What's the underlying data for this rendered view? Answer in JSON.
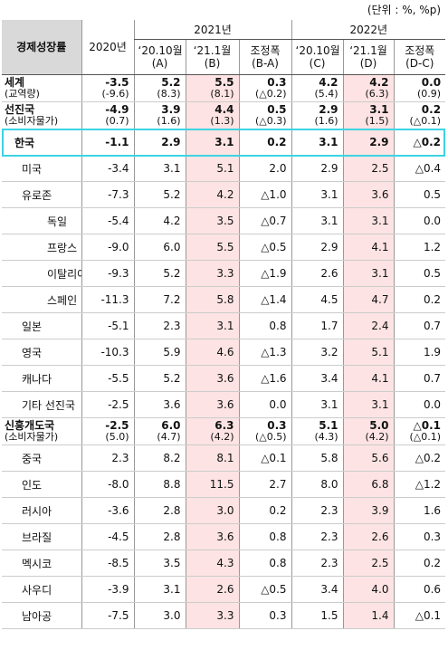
{
  "unit": "(단위 : %, %p)",
  "header": {
    "corner": "경제성장률",
    "year2020": "2020년",
    "groups": [
      {
        "title": "2021년",
        "columns": [
          [
            "‘20.10월",
            "(A)"
          ],
          [
            "‘21.1월",
            "(B)"
          ],
          [
            "조정폭",
            "(B-A)"
          ]
        ]
      },
      {
        "title": "2022년",
        "columns": [
          [
            "‘20.10월",
            "(C)"
          ],
          [
            "‘21.1월",
            "(D)"
          ],
          [
            "조정폭",
            "(D-C)"
          ]
        ]
      }
    ]
  },
  "rows": [
    {
      "label": "세계",
      "sublabel": "(교역량)",
      "values": [
        "-3.5",
        "5.2",
        "5.5",
        "0.3",
        "4.2",
        "4.2",
        "0.0"
      ],
      "subvalues": [
        "(-9.6)",
        "(8.3)",
        "(8.1)",
        "(△0.2)",
        "(5.4)",
        "(6.3)",
        "(0.9)"
      ]
    },
    {
      "label": "선진국",
      "sublabel": "(소비자물가)",
      "values": [
        "-4.9",
        "3.9",
        "4.4",
        "0.5",
        "2.9",
        "3.1",
        "0.2"
      ],
      "subvalues": [
        "(0.7)",
        "(1.6)",
        "(1.3)",
        "(△0.3)",
        "(1.6)",
        "(1.5)",
        "(△0.1)"
      ]
    },
    {
      "label": "한국",
      "values": [
        "-1.1",
        "2.9",
        "3.1",
        "0.2",
        "3.1",
        "2.9",
        "△0.2"
      ]
    },
    {
      "label": "미국",
      "values": [
        "-3.4",
        "3.1",
        "5.1",
        "2.0",
        "2.9",
        "2.5",
        "△0.4"
      ]
    },
    {
      "label": "유로존",
      "values": [
        "-7.3",
        "5.2",
        "4.2",
        "△1.0",
        "3.1",
        "3.6",
        "0.5"
      ]
    },
    {
      "label": "독일",
      "values": [
        "-5.4",
        "4.2",
        "3.5",
        "△0.7",
        "3.1",
        "3.1",
        "0.0"
      ]
    },
    {
      "label": "프랑스",
      "values": [
        "-9.0",
        "6.0",
        "5.5",
        "△0.5",
        "2.9",
        "4.1",
        "1.2"
      ]
    },
    {
      "label": "이탈리아",
      "values": [
        "-9.3",
        "5.2",
        "3.3",
        "△1.9",
        "2.6",
        "3.1",
        "0.5"
      ]
    },
    {
      "label": "스페인",
      "values": [
        "-11.3",
        "7.2",
        "5.8",
        "△1.4",
        "4.5",
        "4.7",
        "0.2"
      ]
    },
    {
      "label": "일본",
      "values": [
        "-5.1",
        "2.3",
        "3.1",
        "0.8",
        "1.7",
        "2.4",
        "0.7"
      ]
    },
    {
      "label": "영국",
      "values": [
        "-10.3",
        "5.9",
        "4.6",
        "△1.3",
        "3.2",
        "5.1",
        "1.9"
      ]
    },
    {
      "label": "캐나다",
      "values": [
        "-5.5",
        "5.2",
        "3.6",
        "△1.6",
        "3.4",
        "4.1",
        "0.7"
      ]
    },
    {
      "label": "기타 선진국",
      "values": [
        "-2.5",
        "3.6",
        "3.6",
        "0.0",
        "3.1",
        "3.1",
        "0.0"
      ]
    },
    {
      "label": "신흥개도국",
      "sublabel": "(소비자물가)",
      "values": [
        "-2.5",
        "6.0",
        "6.3",
        "0.3",
        "5.1",
        "5.0",
        "△0.1"
      ],
      "subvalues": [
        "(5.0)",
        "(4.7)",
        "(4.2)",
        "(△0.5)",
        "(4.3)",
        "(4.2)",
        "(△0.1)"
      ]
    },
    {
      "label": "중국",
      "values": [
        "2.3",
        "8.2",
        "8.1",
        "△0.1",
        "5.8",
        "5.6",
        "△0.2"
      ]
    },
    {
      "label": "인도",
      "values": [
        "-8.0",
        "8.8",
        "11.5",
        "2.7",
        "8.0",
        "6.8",
        "△1.2"
      ]
    },
    {
      "label": "러시아",
      "values": [
        "-3.6",
        "2.8",
        "3.0",
        "0.2",
        "2.3",
        "3.9",
        "1.6"
      ]
    },
    {
      "label": "브라질",
      "values": [
        "-4.5",
        "2.8",
        "3.6",
        "0.8",
        "2.3",
        "2.6",
        "0.3"
      ]
    },
    {
      "label": "멕시코",
      "values": [
        "-8.5",
        "3.5",
        "4.3",
        "0.8",
        "2.3",
        "2.5",
        "0.2"
      ]
    },
    {
      "label": "사우디",
      "values": [
        "-3.9",
        "3.1",
        "2.6",
        "△0.5",
        "3.4",
        "4.0",
        "0.6"
      ]
    },
    {
      "label": "남아공",
      "values": [
        "-7.5",
        "3.0",
        "3.3",
        "0.3",
        "1.5",
        "1.4",
        "△0.1"
      ]
    }
  ]
}
